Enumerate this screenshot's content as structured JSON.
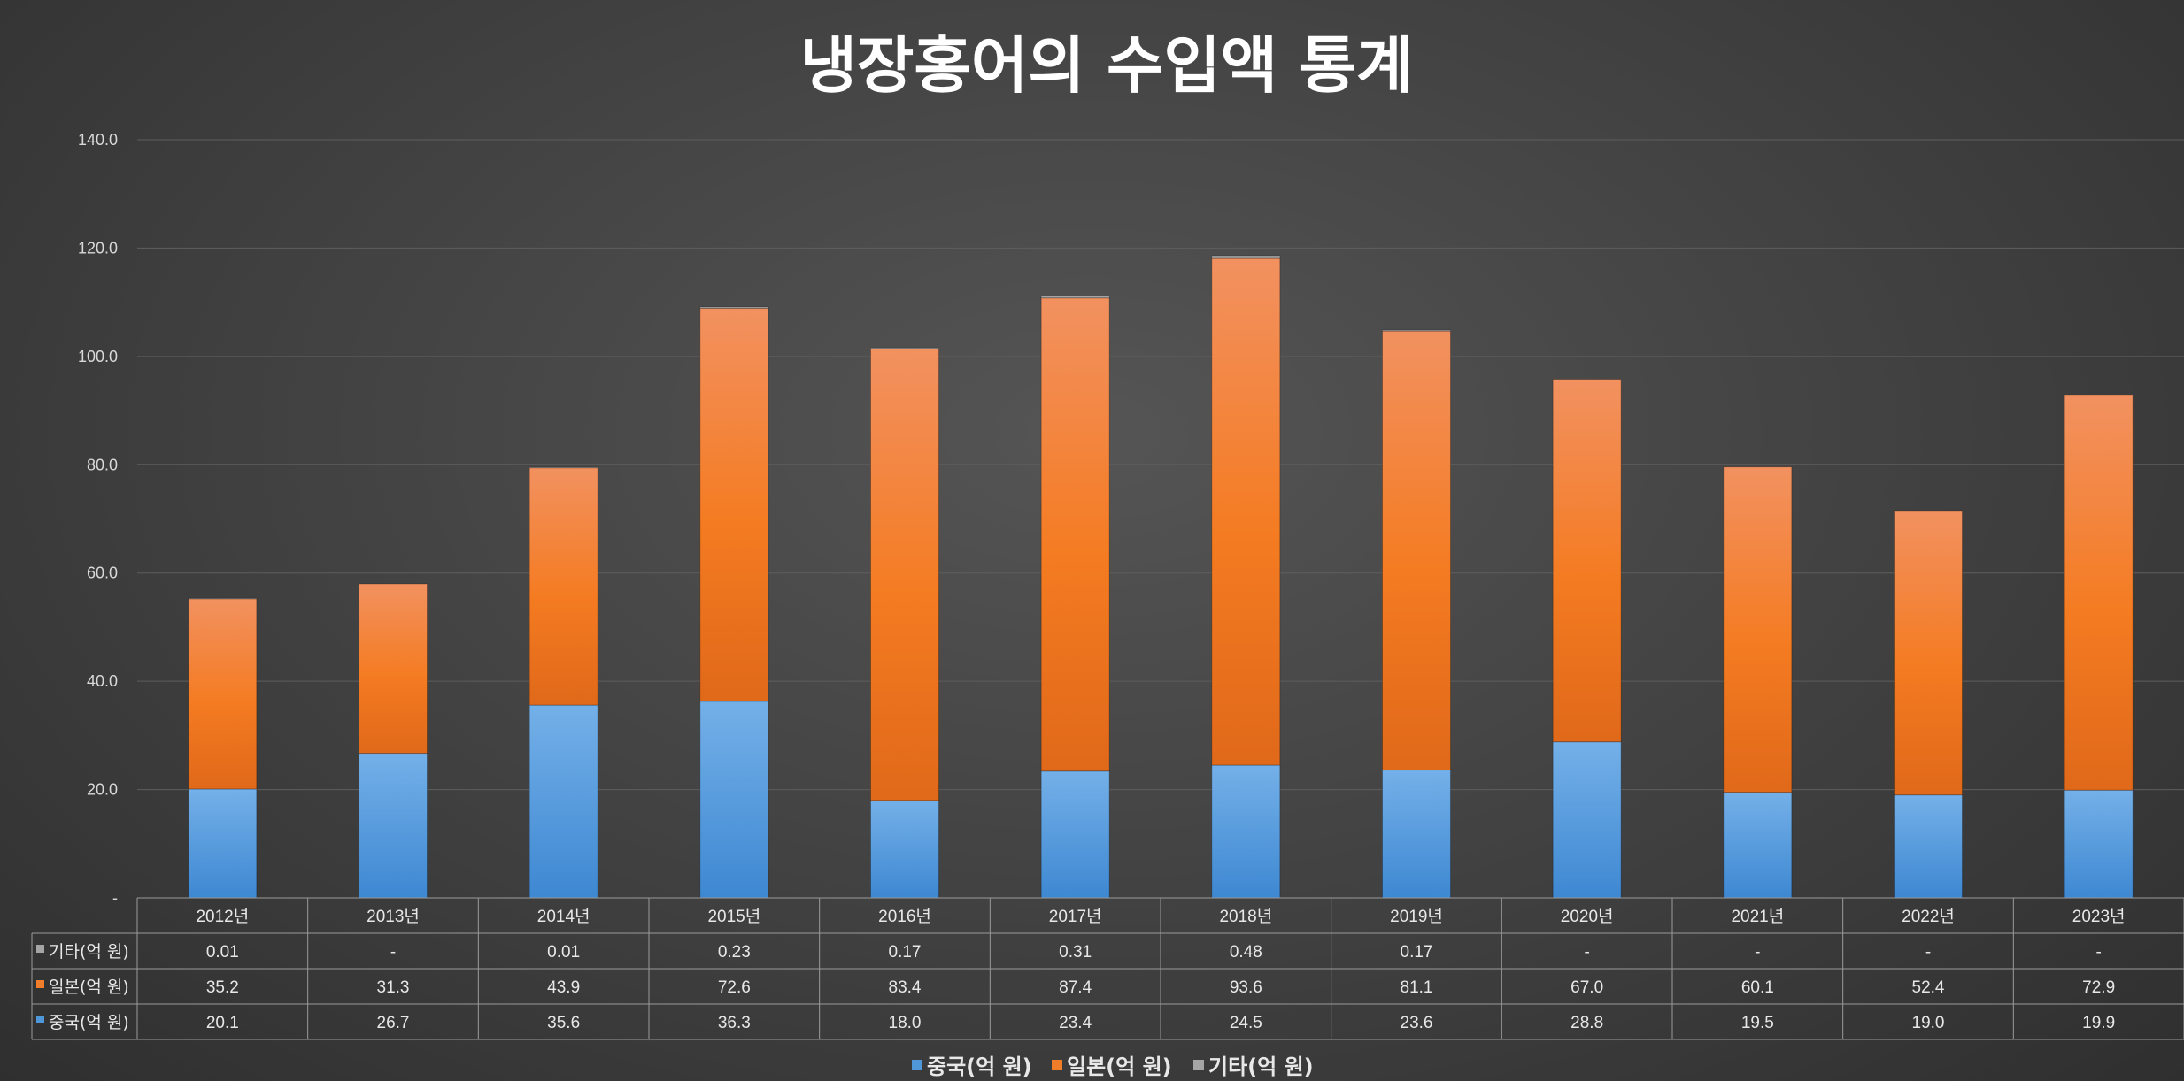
{
  "chart_data": {
    "type": "bar",
    "stacked": true,
    "title": "냉장홍어의 수입액 통계",
    "categories": [
      "2012년",
      "2013년",
      "2014년",
      "2015년",
      "2016년",
      "2017년",
      "2018년",
      "2019년",
      "2020년",
      "2021년",
      "2022년",
      "2023년"
    ],
    "series": [
      {
        "name": "중국(억 원)",
        "color": "#4f97d9",
        "values": [
          20.1,
          26.7,
          35.6,
          36.3,
          18.0,
          23.4,
          24.5,
          23.6,
          28.8,
          19.5,
          19.0,
          19.9
        ],
        "labels": [
          "20.1",
          "26.7",
          "35.6",
          "36.3",
          "18.0",
          "23.4",
          "24.5",
          "23.6",
          "28.8",
          "19.5",
          "19.0",
          "19.9"
        ]
      },
      {
        "name": "일본(억 원)",
        "color": "#f07d2a",
        "values": [
          35.2,
          31.3,
          43.9,
          72.6,
          83.4,
          87.4,
          93.6,
          81.1,
          67.0,
          60.1,
          52.4,
          72.9
        ],
        "labels": [
          "35.2",
          "31.3",
          "43.9",
          "72.6",
          "83.4",
          "87.4",
          "93.6",
          "81.1",
          "67.0",
          "60.1",
          "52.4",
          "72.9"
        ]
      },
      {
        "name": "기타(억 원)",
        "color": "#a5a5a5",
        "values": [
          0.01,
          0,
          0.01,
          0.23,
          0.17,
          0.31,
          0.48,
          0.17,
          0,
          0,
          0,
          0
        ],
        "labels": [
          "0.01",
          "-",
          "0.01",
          "0.23",
          "0.17",
          "0.31",
          "0.48",
          "0.17",
          "-",
          "-",
          "-",
          "-"
        ]
      }
    ],
    "table_row_order": [
      "기타(억 원)",
      "일본(억 원)",
      "중국(억 원)"
    ],
    "y_ticks": [
      "-",
      "20.0",
      "40.0",
      "60.0",
      "80.0",
      "100.0",
      "120.0",
      "140.0"
    ],
    "ylim": [
      0,
      140
    ],
    "grid": true,
    "legend_position": "bottom",
    "data_table": true
  }
}
